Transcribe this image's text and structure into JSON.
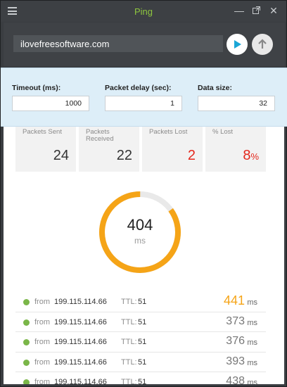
{
  "window": {
    "title": "Ping",
    "menu_icon": "hamburger-icon",
    "controls": [
      "minimize-icon",
      "maximize-icon",
      "close-icon"
    ]
  },
  "host": {
    "value": "ilovefreesoftware.com",
    "start_icon": "play-icon",
    "export_icon": "arrow-up-icon"
  },
  "settings": {
    "timeout_label": "Timeout (ms):",
    "timeout_value": "1000",
    "delay_label": "Packet delay (sec):",
    "delay_value": "1",
    "size_label": "Data size:",
    "size_value": "32"
  },
  "stats": [
    {
      "label": "Packets Sent",
      "value": "24"
    },
    {
      "label": "Packets Received",
      "value": "22"
    },
    {
      "label": "Packets Lost",
      "value": "2"
    },
    {
      "label": "% Lost",
      "value": "8",
      "suffix": "%"
    }
  ],
  "gauge": {
    "value": "404",
    "unit": "ms",
    "fill_fraction": 0.85,
    "color": "#f5a417",
    "track_color": "#e9e9e9"
  },
  "replies": [
    {
      "from_label": "from",
      "ip": "199.115.114.66",
      "ttl_label": "TTL:",
      "ttl": "51",
      "time": "441",
      "unit": "ms"
    },
    {
      "from_label": "from",
      "ip": "199.115.114.66",
      "ttl_label": "TTL:",
      "ttl": "51",
      "time": "373",
      "unit": "ms"
    },
    {
      "from_label": "from",
      "ip": "199.115.114.66",
      "ttl_label": "TTL:",
      "ttl": "51",
      "time": "376",
      "unit": "ms"
    },
    {
      "from_label": "from",
      "ip": "199.115.114.66",
      "ttl_label": "TTL:",
      "ttl": "51",
      "time": "393",
      "unit": "ms"
    },
    {
      "from_label": "from",
      "ip": "199.115.114.66",
      "ttl_label": "TTL:",
      "ttl": "51",
      "time": "438",
      "unit": "ms"
    }
  ],
  "colors": {
    "title": "#8ec63f",
    "lost": "#e4281d",
    "highlight_time": "#f5a417",
    "status_ok": "#7ab648"
  }
}
